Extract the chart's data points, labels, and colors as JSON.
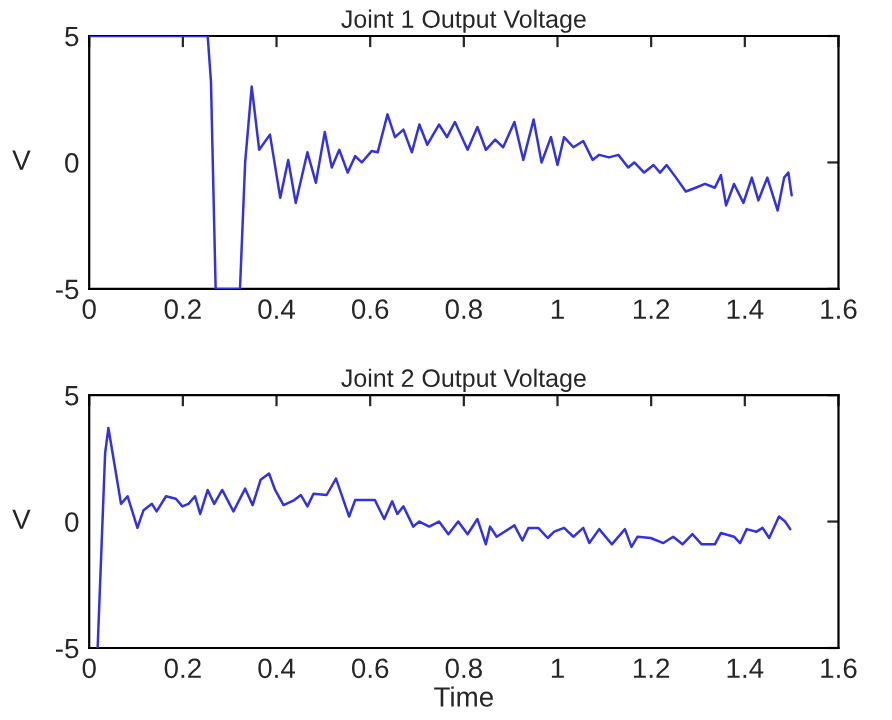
{
  "chart_data": [
    {
      "type": "line",
      "title": "Joint 1 Output Voltage",
      "ylabel": "V",
      "xlim": [
        0,
        1.6
      ],
      "ylim": [
        -5,
        5
      ],
      "xticks": [
        0,
        0.2,
        0.4,
        0.6,
        0.8,
        1,
        1.2,
        1.4,
        1.6
      ],
      "yticks": [
        -5,
        0,
        5
      ],
      "series": [
        {
          "color": "#3333dd",
          "x": [
            0,
            0.253,
            0.26,
            0.27,
            0.322,
            0.333,
            0.347,
            0.363,
            0.386,
            0.408,
            0.425,
            0.441,
            0.466,
            0.484,
            0.503,
            0.518,
            0.534,
            0.552,
            0.568,
            0.582,
            0.603,
            0.616,
            0.637,
            0.653,
            0.671,
            0.689,
            0.705,
            0.722,
            0.747,
            0.764,
            0.781,
            0.808,
            0.829,
            0.847,
            0.867,
            0.884,
            0.908,
            0.927,
            0.949,
            0.966,
            0.986,
            1.0,
            1.014,
            1.034,
            1.055,
            1.075,
            1.089,
            1.11,
            1.13,
            1.151,
            1.164,
            1.185,
            1.205,
            1.219,
            1.233,
            1.253,
            1.274,
            1.295,
            1.315,
            1.336,
            1.349,
            1.36,
            1.377,
            1.397,
            1.415,
            1.429,
            1.448,
            1.47,
            1.484,
            1.493,
            1.5
          ],
          "values": [
            5,
            5,
            3.2,
            -5,
            -5,
            0,
            3.0,
            0.5,
            1.1,
            -1.4,
            0.1,
            -1.6,
            0.4,
            -0.8,
            1.2,
            -0.2,
            0.5,
            -0.4,
            0.25,
            0,
            0.45,
            0.4,
            1.9,
            1.0,
            1.3,
            0.4,
            1.5,
            0.7,
            1.5,
            1.0,
            1.6,
            0.5,
            1.4,
            0.5,
            0.9,
            0.6,
            1.6,
            0.1,
            1.7,
            0,
            1.0,
            -0.1,
            1.0,
            0.6,
            0.85,
            0.1,
            0.3,
            0.2,
            0.3,
            -0.2,
            0,
            -0.4,
            -0.1,
            -0.4,
            -0.1,
            -0.6,
            -1.15,
            -1.0,
            -0.85,
            -1.0,
            -0.5,
            -1.7,
            -0.85,
            -1.6,
            -0.6,
            -1.5,
            -0.6,
            -1.9,
            -0.6,
            -0.4,
            -1.3
          ]
        }
      ]
    },
    {
      "type": "line",
      "title": "Joint 2 Output Voltage",
      "xlabel": "Time",
      "ylabel": "V",
      "xlim": [
        0,
        1.6
      ],
      "ylim": [
        -5,
        5
      ],
      "xticks": [
        0,
        0.2,
        0.4,
        0.6,
        0.8,
        1,
        1.2,
        1.4,
        1.6
      ],
      "yticks": [
        -5,
        0,
        5
      ],
      "series": [
        {
          "color": "#3333dd",
          "x": [
            0.018,
            0.034,
            0.041,
            0.055,
            0.068,
            0.082,
            0.103,
            0.116,
            0.134,
            0.144,
            0.164,
            0.185,
            0.199,
            0.212,
            0.226,
            0.237,
            0.253,
            0.267,
            0.284,
            0.308,
            0.333,
            0.349,
            0.366,
            0.384,
            0.397,
            0.415,
            0.438,
            0.452,
            0.466,
            0.479,
            0.507,
            0.527,
            0.555,
            0.568,
            0.61,
            0.63,
            0.647,
            0.658,
            0.671,
            0.692,
            0.705,
            0.726,
            0.747,
            0.767,
            0.788,
            0.808,
            0.829,
            0.847,
            0.856,
            0.87,
            0.908,
            0.925,
            0.938,
            0.959,
            0.979,
            0.993,
            1.014,
            1.034,
            1.055,
            1.068,
            1.089,
            1.116,
            1.144,
            1.158,
            1.171,
            1.199,
            1.226,
            1.247,
            1.267,
            1.288,
            1.308,
            1.336,
            1.349,
            1.377,
            1.39,
            1.404,
            1.425,
            1.438,
            1.452,
            1.473,
            1.486,
            1.497
          ],
          "values": [
            -5,
            2.7,
            3.7,
            2.15,
            0.7,
            1.0,
            -0.25,
            0.45,
            0.7,
            0.4,
            1.0,
            0.9,
            0.6,
            0.7,
            1.0,
            0.3,
            1.25,
            0.7,
            1.25,
            0.4,
            1.3,
            0.65,
            1.65,
            1.9,
            1.25,
            0.65,
            0.85,
            1.05,
            0.6,
            1.1,
            1.05,
            1.7,
            0.2,
            0.85,
            0.85,
            0.1,
            0.8,
            0.3,
            0.6,
            -0.2,
            0,
            -0.2,
            0,
            -0.5,
            0,
            -0.5,
            0.1,
            -0.9,
            -0.2,
            -0.6,
            -0.15,
            -0.75,
            -0.25,
            -0.25,
            -0.65,
            -0.4,
            -0.25,
            -0.6,
            -0.25,
            -0.85,
            -0.3,
            -0.9,
            -0.3,
            -1.0,
            -0.6,
            -0.65,
            -0.85,
            -0.6,
            -0.9,
            -0.5,
            -0.9,
            -0.9,
            -0.45,
            -0.6,
            -0.85,
            -0.3,
            -0.4,
            -0.25,
            -0.65,
            0.2,
            0,
            -0.3
          ]
        }
      ]
    }
  ]
}
